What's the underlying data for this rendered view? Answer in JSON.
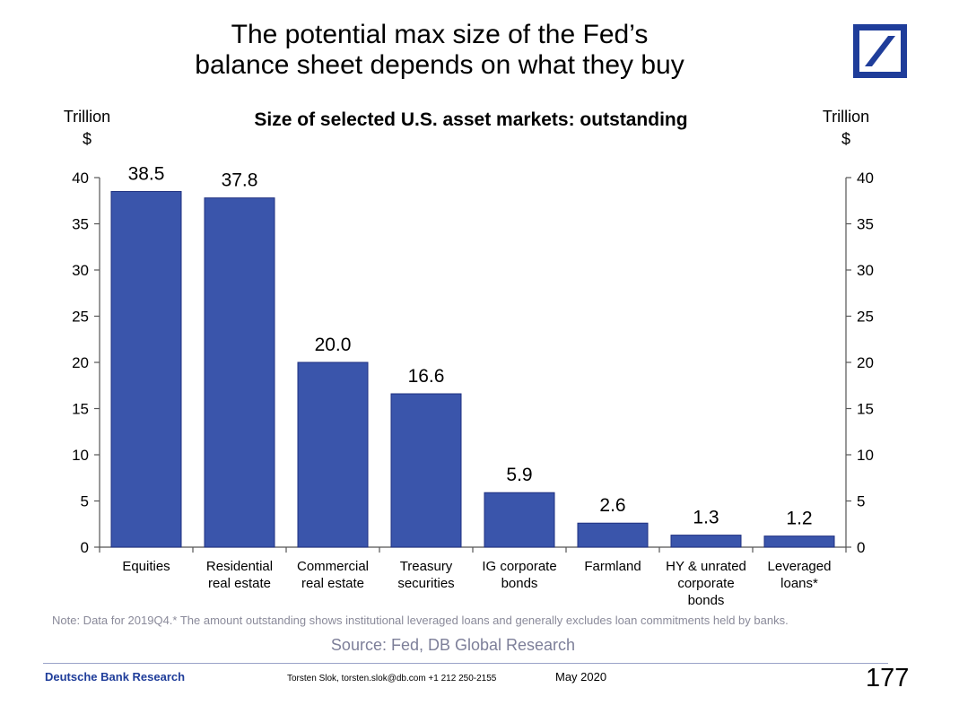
{
  "header": {
    "title_line1": "The potential max size of the Fed’s",
    "title_line2": "balance sheet depends on what they buy",
    "brand_color": "#1f3d9a",
    "logo_icon": "deutsche-bank-logo-icon"
  },
  "chart_data": {
    "type": "bar",
    "title": "Size of selected U.S. asset markets: outstanding",
    "ylabel_left": "Trillion\n$",
    "ylabel_right": "Trillion\n$",
    "categories": [
      "Equities",
      "Residential\nreal estate",
      "Commercial\nreal estate",
      "Treasury\nsecurities",
      "IG corporate\nbonds",
      "Farmland",
      "HY & unrated\ncorporate\nbonds",
      "Leveraged\nloans*"
    ],
    "values": [
      38.5,
      37.8,
      20.0,
      16.6,
      5.9,
      2.6,
      1.3,
      1.2
    ],
    "value_labels": [
      "38.5",
      "37.8",
      "20.0",
      "16.6",
      "5.9",
      "2.6",
      "1.3",
      "1.2"
    ],
    "ylim": [
      0,
      40
    ],
    "yticks": [
      0,
      5,
      10,
      15,
      20,
      25,
      30,
      35,
      40
    ],
    "bar_color": "#3a55ab",
    "bar_edge_color": "#1f3080",
    "grid": false,
    "legend": "none"
  },
  "footnote": "Note: Data for 2019Q4.* The amount outstanding shows institutional leveraged loans and generally excludes loan commitments held by banks.",
  "source": "Source: Fed, DB Global Research",
  "footer": {
    "left": "Deutsche Bank Research",
    "contact": "Torsten Slok, torsten.slok@db.com +1 212 250-2155",
    "date": "May 2020",
    "page": "177"
  }
}
